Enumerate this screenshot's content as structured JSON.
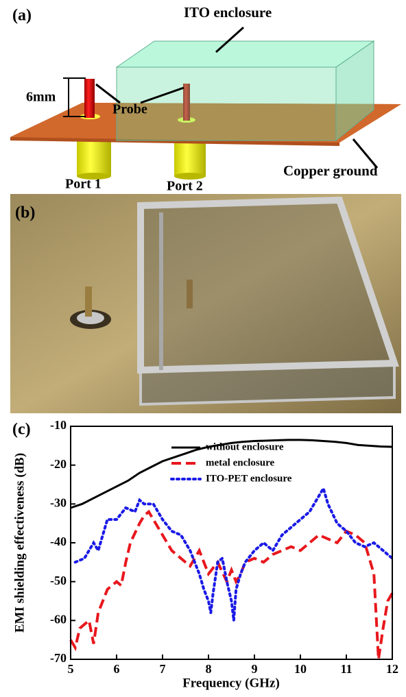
{
  "panel_a": {
    "label": "(a)",
    "enclosure": "ITO enclosure",
    "height": "6mm",
    "probe": "Probe",
    "port1": "Port 1",
    "port2": "Port 2",
    "ground": "Copper ground"
  },
  "panel_b": {
    "label": "(b)"
  },
  "chart_data": {
    "type": "line",
    "panel_label": "(c)",
    "xlabel": "Frequency (GHz)",
    "ylabel": "EMI shielding effectiveness (dB)",
    "xlim": [
      5,
      12
    ],
    "xticks": [
      5,
      6,
      7,
      8,
      9,
      10,
      11,
      12
    ],
    "ylim": [
      -70,
      -10
    ],
    "yticks": [
      -70,
      -60,
      -50,
      -40,
      -30,
      -20,
      -10
    ],
    "legend": "upper right",
    "series": [
      {
        "name": "without enclosure",
        "color": "#000000",
        "linestyle": "solid",
        "x": [
          5,
          5.25,
          5.5,
          5.75,
          6,
          6.25,
          6.5,
          6.75,
          7,
          7.25,
          7.5,
          7.75,
          8,
          8.25,
          8.5,
          8.75,
          9,
          9.25,
          9.5,
          9.75,
          10,
          10.25,
          10.5,
          10.75,
          11,
          11.25,
          11.5,
          11.75,
          12
        ],
        "values": [
          -31,
          -30,
          -28.5,
          -27,
          -25.5,
          -24,
          -22,
          -20.5,
          -19,
          -18,
          -17,
          -16,
          -15.3,
          -14.8,
          -14.3,
          -14,
          -13.8,
          -13.7,
          -13.6,
          -13.5,
          -13.5,
          -13.6,
          -13.8,
          -14,
          -14.3,
          -14.8,
          -15,
          -15.2,
          -15.3
        ]
      },
      {
        "name": "metal enclosure",
        "color": "#e8171d",
        "linestyle": "dashed",
        "x": [
          5,
          5.1,
          5.2,
          5.4,
          5.5,
          5.6,
          5.7,
          5.8,
          6,
          6.1,
          6.2,
          6.3,
          6.5,
          6.6,
          6.7,
          6.8,
          7,
          7.2,
          7.4,
          7.6,
          7.8,
          8,
          8.2,
          8.4,
          8.5,
          8.6,
          8.7,
          8.8,
          9,
          9.2,
          9.4,
          9.6,
          9.8,
          10,
          10.2,
          10.4,
          10.6,
          10.8,
          11,
          11.2,
          11.4,
          11.6,
          11.7,
          11.8,
          11.9,
          12
        ],
        "values": [
          -65,
          -67,
          -62,
          -60,
          -66,
          -58,
          -55,
          -52,
          -50,
          -51,
          -45,
          -40,
          -35,
          -33,
          -32,
          -34,
          -38,
          -42,
          -44,
          -46,
          -42,
          -48,
          -45,
          -50,
          -47,
          -50,
          -48,
          -45,
          -44,
          -45,
          -43,
          -42,
          -41,
          -42,
          -40,
          -38,
          -39,
          -40,
          -37,
          -38,
          -40,
          -48,
          -70,
          -62,
          -55,
          -53
        ]
      },
      {
        "name": "ITO-PET enclosure",
        "color": "#1a1ae6",
        "linestyle": "dotted",
        "x": [
          5.1,
          5.3,
          5.5,
          5.6,
          5.7,
          5.8,
          6,
          6.2,
          6.4,
          6.5,
          6.6,
          6.8,
          7,
          7.2,
          7.4,
          7.6,
          7.8,
          7.9,
          8,
          8.05,
          8.1,
          8.2,
          8.3,
          8.4,
          8.5,
          8.55,
          8.6,
          8.7,
          8.8,
          9,
          9.2,
          9.4,
          9.6,
          9.8,
          10,
          10.2,
          10.4,
          10.5,
          10.6,
          10.8,
          11,
          11.2,
          11.4,
          11.6,
          11.8,
          12
        ],
        "values": [
          -45,
          -44,
          -40,
          -42,
          -38,
          -34,
          -34,
          -31,
          -32,
          -29,
          -30,
          -30,
          -34,
          -37,
          -38,
          -42,
          -48,
          -52,
          -55,
          -58,
          -53,
          -45,
          -44,
          -50,
          -55,
          -60,
          -52,
          -48,
          -45,
          -42,
          -40,
          -42,
          -38,
          -36,
          -34,
          -32,
          -28,
          -26,
          -30,
          -35,
          -37,
          -40,
          -41,
          -40,
          -42,
          -44
        ]
      }
    ]
  }
}
